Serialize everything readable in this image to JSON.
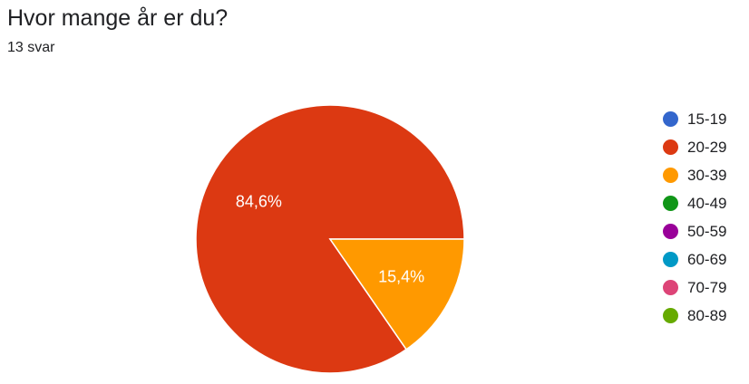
{
  "question": {
    "title": "Hvor mange år er du?",
    "response_count": "13 svar"
  },
  "chart_data": {
    "type": "pie",
    "categories": [
      "15-19",
      "20-29",
      "30-39",
      "40-49",
      "50-59",
      "60-69",
      "70-79",
      "80-89"
    ],
    "values": [
      0,
      11,
      2,
      0,
      0,
      0,
      0,
      0
    ],
    "slice_labels": [
      "",
      "84,6%",
      "15,4%",
      "",
      "",
      "",
      "",
      ""
    ],
    "colors": [
      "#3366cc",
      "#dc3912",
      "#ff9900",
      "#109618",
      "#990099",
      "#0099c6",
      "#dd4477",
      "#66aa00"
    ],
    "legend_position": "right"
  }
}
